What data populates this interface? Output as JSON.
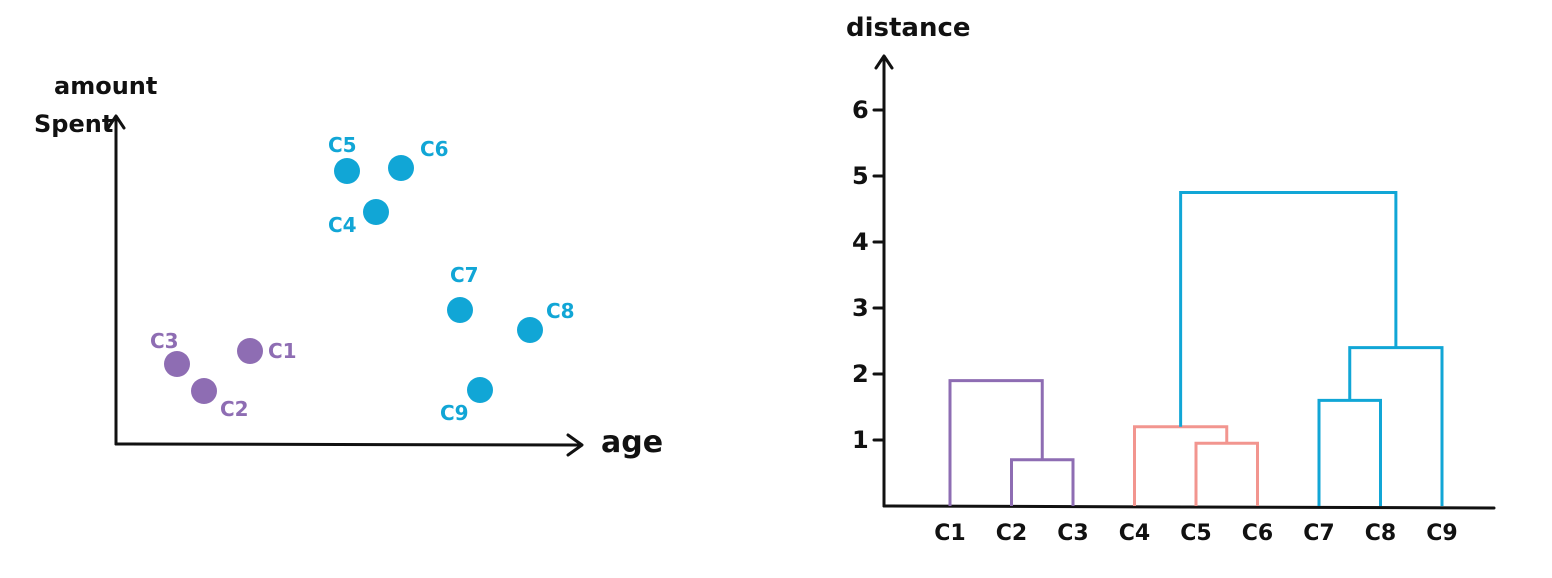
{
  "scatter": {
    "y_label_line1": "amount",
    "y_label_line2": "Spent",
    "x_label": "age",
    "purple_color": "#8E6DB3",
    "blue_color": "#11A6D6",
    "points": [
      {
        "label": "C1",
        "group": "purple"
      },
      {
        "label": "C2",
        "group": "purple"
      },
      {
        "label": "C3",
        "group": "purple"
      },
      {
        "label": "C4",
        "group": "blue"
      },
      {
        "label": "C5",
        "group": "blue"
      },
      {
        "label": "C6",
        "group": "blue"
      },
      {
        "label": "C7",
        "group": "blue"
      },
      {
        "label": "C8",
        "group": "blue"
      },
      {
        "label": "C9",
        "group": "blue"
      }
    ]
  },
  "dendrogram": {
    "y_label": "distance",
    "y_ticks": [
      "1",
      "2",
      "3",
      "4",
      "5",
      "6"
    ],
    "leaves": [
      "C1",
      "C2",
      "C3",
      "C4",
      "C5",
      "C6",
      "C7",
      "C8",
      "C9"
    ],
    "colors": {
      "purple": "#8E6DB3",
      "pink": "#F2958F",
      "blue": "#11A6D6"
    },
    "merges": [
      {
        "left": "C2",
        "right": "C3",
        "height": 0.7,
        "color": "purple"
      },
      {
        "left": "C1",
        "right": "C2+C3",
        "height": 1.9,
        "color": "purple"
      },
      {
        "left": "C5",
        "right": "C6",
        "height": 0.95,
        "color": "pink"
      },
      {
        "left": "C4",
        "right": "C5+C6",
        "height": 1.2,
        "color": "pink"
      },
      {
        "left": "C7",
        "right": "C8",
        "height": 1.6,
        "color": "blue"
      },
      {
        "left": "C7+C8",
        "right": "C9",
        "height": 2.4,
        "color": "blue"
      },
      {
        "left": "C4+C5+C6",
        "right": "C7+C8+C9",
        "height": 4.75,
        "color": "blue"
      }
    ]
  }
}
